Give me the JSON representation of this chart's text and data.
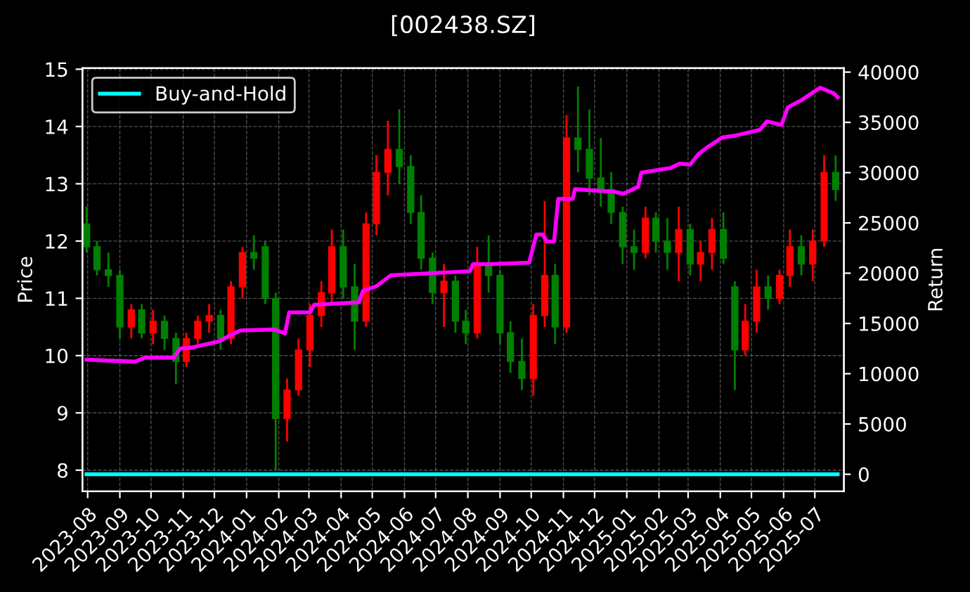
{
  "chart_data": {
    "type": "candlestick",
    "title": "[002438.SZ]",
    "ylabel": "Price",
    "y2label": "Return",
    "x": [
      "2023-07-31",
      "2023-08-10",
      "2023-08-21",
      "2023-09-01",
      "2023-09-12",
      "2023-09-22",
      "2023-10-03",
      "2023-10-14",
      "2023-10-25",
      "2023-11-04",
      "2023-11-15",
      "2023-11-26",
      "2023-12-07",
      "2023-12-17",
      "2023-12-28",
      "2024-01-08",
      "2024-01-19",
      "2024-01-29",
      "2024-02-09",
      "2024-02-20",
      "2024-03-02",
      "2024-03-13",
      "2024-03-23",
      "2024-04-03",
      "2024-04-14",
      "2024-04-25",
      "2024-05-05",
      "2024-05-16",
      "2024-05-27",
      "2024-06-07",
      "2024-06-17",
      "2024-06-28",
      "2024-07-09",
      "2024-07-20",
      "2024-07-30",
      "2024-08-10",
      "2024-08-21",
      "2024-09-01",
      "2024-09-11",
      "2024-09-22",
      "2024-10-03",
      "2024-10-14",
      "2024-10-24",
      "2024-11-04",
      "2024-11-15",
      "2024-11-26",
      "2024-12-07",
      "2024-12-17",
      "2024-12-28",
      "2025-01-08",
      "2025-01-19",
      "2025-01-29",
      "2025-02-09",
      "2025-02-20",
      "2025-03-03",
      "2025-03-13",
      "2025-03-24",
      "2025-04-04",
      "2025-04-15",
      "2025-04-25",
      "2025-05-06",
      "2025-05-17",
      "2025-05-28",
      "2025-06-07",
      "2025-06-18",
      "2025-06-29",
      "2025-07-10",
      "2025-07-21"
    ],
    "ohlc": [
      [
        12.3,
        12.6,
        11.8,
        11.9
      ],
      [
        11.9,
        12.0,
        11.4,
        11.5
      ],
      [
        11.5,
        11.8,
        11.2,
        11.4
      ],
      [
        11.4,
        11.5,
        10.3,
        10.5
      ],
      [
        10.5,
        10.9,
        10.3,
        10.8
      ],
      [
        10.8,
        10.9,
        10.3,
        10.4
      ],
      [
        10.4,
        10.8,
        10.2,
        10.6
      ],
      [
        10.6,
        10.7,
        10.1,
        10.3
      ],
      [
        10.3,
        10.4,
        9.5,
        9.9
      ],
      [
        9.9,
        10.4,
        9.8,
        10.3
      ],
      [
        10.3,
        10.7,
        10.2,
        10.6
      ],
      [
        10.6,
        10.9,
        10.4,
        10.7
      ],
      [
        10.7,
        10.8,
        10.1,
        10.3
      ],
      [
        10.3,
        11.3,
        10.2,
        11.2
      ],
      [
        11.2,
        11.9,
        11.0,
        11.8
      ],
      [
        11.8,
        12.1,
        11.5,
        11.7
      ],
      [
        11.9,
        12.0,
        10.9,
        11.0
      ],
      [
        11.0,
        11.1,
        8.0,
        8.9
      ],
      [
        8.9,
        9.6,
        8.5,
        9.4
      ],
      [
        9.4,
        10.3,
        9.3,
        10.1
      ],
      [
        10.1,
        10.9,
        9.8,
        10.7
      ],
      [
        10.7,
        11.3,
        10.5,
        11.1
      ],
      [
        11.1,
        12.2,
        10.9,
        11.9
      ],
      [
        11.9,
        12.2,
        11.0,
        11.2
      ],
      [
        11.2,
        11.6,
        10.1,
        10.6
      ],
      [
        10.6,
        12.5,
        10.5,
        12.3
      ],
      [
        12.3,
        13.5,
        12.1,
        13.2
      ],
      [
        13.2,
        14.1,
        12.8,
        13.6
      ],
      [
        13.6,
        14.3,
        13.0,
        13.3
      ],
      [
        13.3,
        13.5,
        12.3,
        12.5
      ],
      [
        12.5,
        12.8,
        11.5,
        11.7
      ],
      [
        11.7,
        11.8,
        10.9,
        11.1
      ],
      [
        11.1,
        11.6,
        10.5,
        11.3
      ],
      [
        11.3,
        11.4,
        10.4,
        10.6
      ],
      [
        10.6,
        10.8,
        10.2,
        10.4
      ],
      [
        10.4,
        11.9,
        10.3,
        11.6
      ],
      [
        11.6,
        12.1,
        11.1,
        11.4
      ],
      [
        11.4,
        11.5,
        10.2,
        10.4
      ],
      [
        10.4,
        10.6,
        9.7,
        9.9
      ],
      [
        9.9,
        10.3,
        9.4,
        9.6
      ],
      [
        9.6,
        10.9,
        9.3,
        10.7
      ],
      [
        10.7,
        12.7,
        10.5,
        11.4
      ],
      [
        11.4,
        11.6,
        10.2,
        10.5
      ],
      [
        10.5,
        14.2,
        10.4,
        13.8
      ],
      [
        13.8,
        14.7,
        13.2,
        13.6
      ],
      [
        13.6,
        14.3,
        12.8,
        13.1
      ],
      [
        13.1,
        13.8,
        12.6,
        12.9
      ],
      [
        12.9,
        13.2,
        12.3,
        12.5
      ],
      [
        12.5,
        12.6,
        11.6,
        11.9
      ],
      [
        11.9,
        12.2,
        11.5,
        11.8
      ],
      [
        11.8,
        12.6,
        11.7,
        12.4
      ],
      [
        12.4,
        12.5,
        11.8,
        12.0
      ],
      [
        12.0,
        12.4,
        11.5,
        11.8
      ],
      [
        11.8,
        12.6,
        11.3,
        12.2
      ],
      [
        12.2,
        12.3,
        11.4,
        11.6
      ],
      [
        11.6,
        12.0,
        11.3,
        11.8
      ],
      [
        11.8,
        12.4,
        11.5,
        12.2
      ],
      [
        12.2,
        12.5,
        11.6,
        11.7
      ],
      [
        11.2,
        11.3,
        9.4,
        10.1
      ],
      [
        10.1,
        10.9,
        10.0,
        10.6
      ],
      [
        10.6,
        11.5,
        10.4,
        11.2
      ],
      [
        11.2,
        11.4,
        10.8,
        11.0
      ],
      [
        11.0,
        11.5,
        10.9,
        11.4
      ],
      [
        11.4,
        12.2,
        11.2,
        11.9
      ],
      [
        11.9,
        12.1,
        11.4,
        11.6
      ],
      [
        11.6,
        12.2,
        11.3,
        12.0
      ],
      [
        12.0,
        13.5,
        11.9,
        13.2
      ],
      [
        13.2,
        13.5,
        12.7,
        12.9
      ]
    ],
    "colors": [
      "#008000",
      "#008000",
      "#008000",
      "#008000",
      "#ff0000",
      "#008000",
      "#ff0000",
      "#008000",
      "#008000",
      "#ff0000",
      "#ff0000",
      "#ff0000",
      "#008000",
      "#ff0000",
      "#ff0000",
      "#008000",
      "#008000",
      "#008000",
      "#ff0000",
      "#ff0000",
      "#ff0000",
      "#ff0000",
      "#ff0000",
      "#008000",
      "#008000",
      "#ff0000",
      "#ff0000",
      "#ff0000",
      "#008000",
      "#008000",
      "#008000",
      "#008000",
      "#ff0000",
      "#008000",
      "#008000",
      "#ff0000",
      "#008000",
      "#008000",
      "#008000",
      "#008000",
      "#ff0000",
      "#ff0000",
      "#008000",
      "#ff0000",
      "#008000",
      "#008000",
      "#008000",
      "#008000",
      "#008000",
      "#008000",
      "#ff0000",
      "#008000",
      "#008000",
      "#ff0000",
      "#008000",
      "#ff0000",
      "#ff0000",
      "#008000",
      "#008000",
      "#ff0000",
      "#ff0000",
      "#008000",
      "#ff0000",
      "#ff0000",
      "#008000",
      "#ff0000",
      "#ff0000",
      "#008000"
    ],
    "series": [
      {
        "type": "line",
        "axis": "y2",
        "color": "#ff00ff",
        "x": [
          "2023-07-31",
          "2023-09-16",
          "2023-09-25",
          "2023-10-23",
          "2023-10-29",
          "2023-11-09",
          "2023-12-05",
          "2023-12-15",
          "2023-12-26",
          "2024-01-28",
          "2024-02-07",
          "2024-02-11",
          "2024-03-02",
          "2024-03-06",
          "2024-04-18",
          "2024-04-22",
          "2024-05-05",
          "2024-05-19",
          "2024-08-03",
          "2024-08-06",
          "2024-08-21",
          "2024-09-29",
          "2024-10-06",
          "2024-10-12",
          "2024-10-16",
          "2024-10-23",
          "2024-10-27",
          "2024-11-10",
          "2024-11-12",
          "2024-12-20",
          "2024-12-29",
          "2025-01-12",
          "2025-01-15",
          "2025-02-12",
          "2025-02-21",
          "2025-03-03",
          "2025-03-11",
          "2025-03-20",
          "2025-04-03",
          "2025-04-16",
          "2025-05-09",
          "2025-05-16",
          "2025-05-30",
          "2025-06-05",
          "2025-06-18",
          "2025-07-06",
          "2025-07-19",
          "2025-07-23"
        ],
        "values": [
          11400,
          11200,
          11600,
          11600,
          12500,
          12600,
          13200,
          13750,
          14300,
          14400,
          14000,
          16100,
          16100,
          16850,
          17100,
          18250,
          18700,
          19800,
          20200,
          20900,
          20900,
          21050,
          23850,
          23850,
          23150,
          23150,
          27400,
          27400,
          28350,
          28100,
          27900,
          28600,
          30000,
          30450,
          30900,
          30800,
          31850,
          32550,
          33500,
          33700,
          34250,
          35100,
          34750,
          36500,
          37200,
          38450,
          37900,
          37500
        ]
      },
      {
        "type": "line",
        "axis": "y2",
        "name": "Buy-and-Hold",
        "color": "#00ffff",
        "x": [
          "2023-07-31",
          "2025-07-23"
        ],
        "values": [
          0,
          0
        ]
      }
    ],
    "xlim": [
      "2023-07-27",
      "2025-07-29"
    ],
    "xticks": [
      {
        "value": "2023-08-01",
        "label": "2023-08"
      },
      {
        "value": "2023-09-01",
        "label": "2023-09"
      },
      {
        "value": "2023-10-01",
        "label": "2023-10"
      },
      {
        "value": "2023-11-01",
        "label": "2023-11"
      },
      {
        "value": "2023-12-01",
        "label": "2023-12"
      },
      {
        "value": "2024-01-01",
        "label": "2024-01"
      },
      {
        "value": "2024-02-01",
        "label": "2024-02"
      },
      {
        "value": "2024-03-01",
        "label": "2024-03"
      },
      {
        "value": "2024-04-01",
        "label": "2024-04"
      },
      {
        "value": "2024-05-01",
        "label": "2024-05"
      },
      {
        "value": "2024-06-01",
        "label": "2024-06"
      },
      {
        "value": "2024-07-01",
        "label": "2024-07"
      },
      {
        "value": "2024-08-01",
        "label": "2024-08"
      },
      {
        "value": "2024-09-01",
        "label": "2024-09"
      },
      {
        "value": "2024-10-01",
        "label": "2024-10"
      },
      {
        "value": "2024-11-01",
        "label": "2024-11"
      },
      {
        "value": "2024-12-01",
        "label": "2024-12"
      },
      {
        "value": "2025-01-01",
        "label": "2025-01"
      },
      {
        "value": "2025-02-01",
        "label": "2025-02"
      },
      {
        "value": "2025-03-01",
        "label": "2025-03"
      },
      {
        "value": "2025-04-01",
        "label": "2025-04"
      },
      {
        "value": "2025-05-01",
        "label": "2025-05"
      },
      {
        "value": "2025-06-01",
        "label": "2025-06"
      },
      {
        "value": "2025-07-01",
        "label": "2025-07"
      }
    ],
    "ylim": [
      7.63,
      15.02
    ],
    "yticks": [
      8,
      9,
      10,
      11,
      12,
      13,
      14,
      15
    ],
    "y2lim": [
      -1700,
      40400
    ],
    "y2ticks": [
      0,
      5000,
      10000,
      15000,
      20000,
      25000,
      30000,
      35000,
      40000
    ],
    "grid": true,
    "legend": "top left"
  }
}
